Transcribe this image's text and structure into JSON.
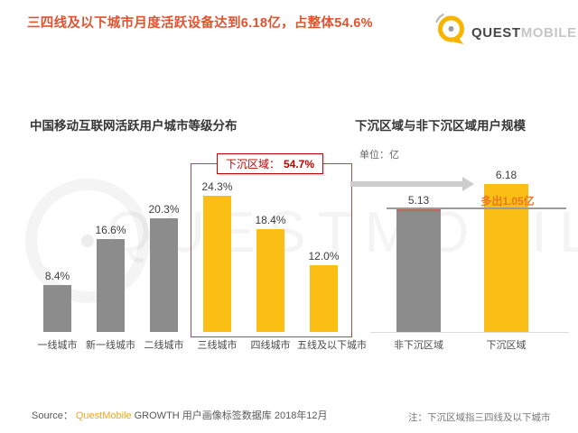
{
  "header": {
    "title": "三四线及以下城市月度活跃设备达到6.18亿，占整体54.6%",
    "logo": {
      "quest": "QUEST",
      "mobile": "MOBILE"
    }
  },
  "watermark": {
    "text": "QUESTMOBILE"
  },
  "left_chart": {
    "title": "中国移动互联网活跃用户城市等级分布",
    "annotation_label": "下沉区域：",
    "annotation_value": "54.7%"
  },
  "right_chart": {
    "title": "下沉区域与非下沉区域用户规模",
    "unit": "单位：亿",
    "diff_label": "多出1.05亿"
  },
  "footer": {
    "source_label": "Source：",
    "source_brand": "QuestMobile",
    "source_text": "GROWTH 用户画像标签数据库 2018年12月",
    "note": "注：下沉区域指三四线及以下城市"
  },
  "colors": {
    "title_orange_red": "#E0532F",
    "bar_gray": "#8C8C8C",
    "bar_yellow": "#FBBE14",
    "annotation_red": "#C00000",
    "sink_box_border": "#B04A42",
    "diff_orange": "#E87722",
    "brand_orange": "#F5A623",
    "arrow_gray": "#CDCDCD"
  },
  "chart_data": [
    {
      "id": "city-tier-distribution",
      "type": "bar",
      "title": "中国移动互联网活跃用户城市等级分布",
      "categories": [
        "一线城市",
        "新一线城市",
        "二线城市",
        "三线城市",
        "四线城市",
        "五线及以下城市"
      ],
      "values": [
        8.4,
        16.6,
        20.3,
        24.3,
        18.4,
        12.0
      ],
      "value_labels": [
        "8.4%",
        "16.6%",
        "20.3%",
        "24.3%",
        "18.4%",
        "12.0%"
      ],
      "unit": "%",
      "ylim": [
        0,
        30
      ],
      "grid": false,
      "legend": false,
      "bar_colors": [
        "#8C8C8C",
        "#8C8C8C",
        "#8C8C8C",
        "#FBBE14",
        "#FBBE14",
        "#FBBE14"
      ],
      "annotation": {
        "label": "下沉区域",
        "value": "54.7%",
        "covers": [
          "三线城市",
          "四线城市",
          "五线及以下城市"
        ]
      }
    },
    {
      "id": "sinking-vs-non-sinking-scale",
      "type": "bar",
      "title": "下沉区域与非下沉区域用户规模",
      "categories": [
        "非下沉区域",
        "下沉区域"
      ],
      "values": [
        5.13,
        6.18
      ],
      "value_labels": [
        "5.13",
        "6.18"
      ],
      "unit": "亿",
      "ylim": [
        0,
        7
      ],
      "grid": false,
      "legend": false,
      "bar_colors": [
        "#8C8C8C",
        "#FBBE14"
      ],
      "annotation": {
        "label": "多出1.05亿",
        "reference_level": 5.13
      }
    }
  ]
}
